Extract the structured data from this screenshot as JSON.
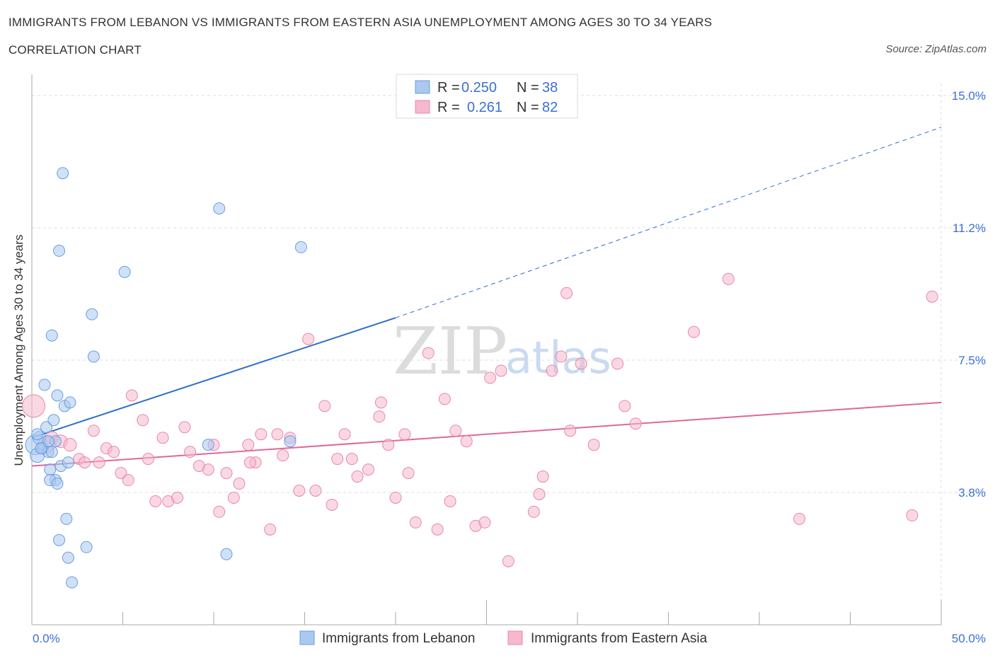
{
  "title": "IMMIGRANTS FROM LEBANON VS IMMIGRANTS FROM EASTERN ASIA UNEMPLOYMENT AMONG AGES 30 TO 34 YEARS",
  "subtitle": "CORRELATION CHART",
  "source": "Source: ZipAtlas.com",
  "watermark": {
    "zip": "ZIP",
    "atlas": "atlas"
  },
  "colors": {
    "blue_fill": "#aac8f0",
    "blue_stroke": "#6a9de0",
    "blue_line": "#2d6fcc",
    "pink_fill": "#f5b8cc",
    "pink_stroke": "#e888a8",
    "pink_line": "#e0679a",
    "grid": "#dddddd",
    "axis_label": "#3a6fd8"
  },
  "legend": {
    "rows": [
      {
        "r_label": "R = ",
        "r_value": "0.250",
        "n_label": "N = ",
        "n_value": "38"
      },
      {
        "r_label": "R = ",
        "r_value": "0.261",
        "n_label": "N = ",
        "n_value": "82"
      }
    ]
  },
  "bottom_legend": [
    "Immigrants from Lebanon",
    "Immigrants from Eastern Asia"
  ],
  "chart_data": {
    "type": "scatter",
    "xlabel": "",
    "ylabel": "Unemployment Among Ages 30 to 34 years",
    "xlim": [
      0,
      50
    ],
    "ylim": [
      0,
      15
    ],
    "x_tick_labels": [
      {
        "value": 0,
        "label": "0.0%"
      },
      {
        "value": 50,
        "label": "50.0%"
      }
    ],
    "y_tick_labels": [
      {
        "value": 3.75,
        "label": "3.8%"
      },
      {
        "value": 7.5,
        "label": "7.5%"
      },
      {
        "value": 11.25,
        "label": "11.2%"
      },
      {
        "value": 15.0,
        "label": "15.0%"
      }
    ],
    "series": [
      {
        "name": "Immigrants from Lebanon",
        "color": "blue",
        "trend": {
          "x0": 0,
          "y0": 5.3,
          "x_solid_end": 20,
          "y_solid_end": 8.7,
          "x_end": 50,
          "y_end": 14.1
        },
        "points": [
          {
            "x": 0.2,
            "y": 5.1,
            "s": 14
          },
          {
            "x": 0.3,
            "y": 4.8,
            "s": 10
          },
          {
            "x": 0.4,
            "y": 5.3,
            "s": 9
          },
          {
            "x": 0.6,
            "y": 5.0,
            "s": 8
          },
          {
            "x": 0.8,
            "y": 5.6,
            "s": 8
          },
          {
            "x": 0.9,
            "y": 4.9,
            "s": 8
          },
          {
            "x": 0.7,
            "y": 6.8,
            "s": 8
          },
          {
            "x": 1.1,
            "y": 8.2,
            "s": 8
          },
          {
            "x": 1.2,
            "y": 5.8,
            "s": 8
          },
          {
            "x": 1.3,
            "y": 5.2,
            "s": 8
          },
          {
            "x": 1.3,
            "y": 4.1,
            "s": 8
          },
          {
            "x": 1.4,
            "y": 6.5,
            "s": 8
          },
          {
            "x": 1.5,
            "y": 10.6,
            "s": 8
          },
          {
            "x": 1.6,
            "y": 4.5,
            "s": 8
          },
          {
            "x": 1.7,
            "y": 12.8,
            "s": 8
          },
          {
            "x": 1.8,
            "y": 6.2,
            "s": 8
          },
          {
            "x": 1.9,
            "y": 3.0,
            "s": 8
          },
          {
            "x": 2.0,
            "y": 1.9,
            "s": 8
          },
          {
            "x": 2.1,
            "y": 6.3,
            "s": 8
          },
          {
            "x": 2.2,
            "y": 1.2,
            "s": 8
          },
          {
            "x": 1.5,
            "y": 2.4,
            "s": 8
          },
          {
            "x": 1.0,
            "y": 4.4,
            "s": 8
          },
          {
            "x": 1.0,
            "y": 4.1,
            "s": 8
          },
          {
            "x": 2.0,
            "y": 4.6,
            "s": 8
          },
          {
            "x": 3.0,
            "y": 2.2,
            "s": 8
          },
          {
            "x": 3.3,
            "y": 8.8,
            "s": 8
          },
          {
            "x": 3.4,
            "y": 7.6,
            "s": 8
          },
          {
            "x": 5.1,
            "y": 10.0,
            "s": 8
          },
          {
            "x": 10.3,
            "y": 11.8,
            "s": 8
          },
          {
            "x": 9.7,
            "y": 5.1,
            "s": 8
          },
          {
            "x": 10.7,
            "y": 2.0,
            "s": 8
          },
          {
            "x": 14.8,
            "y": 10.7,
            "s": 8
          },
          {
            "x": 14.2,
            "y": 5.2,
            "s": 8
          },
          {
            "x": 0.5,
            "y": 5.0,
            "s": 8
          },
          {
            "x": 0.9,
            "y": 5.2,
            "s": 8
          },
          {
            "x": 0.3,
            "y": 5.4,
            "s": 8
          },
          {
            "x": 1.1,
            "y": 4.9,
            "s": 8
          },
          {
            "x": 1.4,
            "y": 4.0,
            "s": 8
          }
        ]
      },
      {
        "name": "Immigrants from Eastern Asia",
        "color": "pink",
        "trend": {
          "x0": 0,
          "y0": 4.5,
          "x_end": 50,
          "y_end": 6.3
        },
        "points": [
          {
            "x": 0.1,
            "y": 6.2,
            "s": 16
          },
          {
            "x": 0.8,
            "y": 5.1,
            "s": 12
          },
          {
            "x": 1.1,
            "y": 5.3,
            "s": 9
          },
          {
            "x": 1.6,
            "y": 5.2,
            "s": 9
          },
          {
            "x": 2.1,
            "y": 5.1,
            "s": 9
          },
          {
            "x": 2.6,
            "y": 4.7,
            "s": 8
          },
          {
            "x": 2.9,
            "y": 4.6,
            "s": 8
          },
          {
            "x": 3.4,
            "y": 5.5,
            "s": 8
          },
          {
            "x": 3.7,
            "y": 4.6,
            "s": 8
          },
          {
            "x": 4.1,
            "y": 5.0,
            "s": 8
          },
          {
            "x": 4.5,
            "y": 4.9,
            "s": 8
          },
          {
            "x": 4.9,
            "y": 4.3,
            "s": 8
          },
          {
            "x": 5.3,
            "y": 4.1,
            "s": 8
          },
          {
            "x": 5.5,
            "y": 6.5,
            "s": 8
          },
          {
            "x": 6.1,
            "y": 5.8,
            "s": 8
          },
          {
            "x": 6.4,
            "y": 4.7,
            "s": 8
          },
          {
            "x": 6.8,
            "y": 3.5,
            "s": 8
          },
          {
            "x": 7.2,
            "y": 5.3,
            "s": 8
          },
          {
            "x": 7.5,
            "y": 3.5,
            "s": 8
          },
          {
            "x": 8.0,
            "y": 3.6,
            "s": 8
          },
          {
            "x": 8.4,
            "y": 5.6,
            "s": 8
          },
          {
            "x": 8.7,
            "y": 4.9,
            "s": 8
          },
          {
            "x": 9.2,
            "y": 4.5,
            "s": 8
          },
          {
            "x": 9.7,
            "y": 4.4,
            "s": 8
          },
          {
            "x": 10.0,
            "y": 5.1,
            "s": 8
          },
          {
            "x": 10.3,
            "y": 3.2,
            "s": 8
          },
          {
            "x": 10.7,
            "y": 4.3,
            "s": 8
          },
          {
            "x": 11.1,
            "y": 3.6,
            "s": 8
          },
          {
            "x": 11.4,
            "y": 4.0,
            "s": 8
          },
          {
            "x": 11.9,
            "y": 5.1,
            "s": 8
          },
          {
            "x": 12.3,
            "y": 4.6,
            "s": 8
          },
          {
            "x": 12.6,
            "y": 5.4,
            "s": 8
          },
          {
            "x": 13.1,
            "y": 2.7,
            "s": 8
          },
          {
            "x": 13.5,
            "y": 5.4,
            "s": 8
          },
          {
            "x": 13.8,
            "y": 4.8,
            "s": 8
          },
          {
            "x": 14.2,
            "y": 5.3,
            "s": 8
          },
          {
            "x": 14.7,
            "y": 3.8,
            "s": 8
          },
          {
            "x": 15.2,
            "y": 8.1,
            "s": 8
          },
          {
            "x": 15.6,
            "y": 3.8,
            "s": 8
          },
          {
            "x": 16.1,
            "y": 6.2,
            "s": 8
          },
          {
            "x": 16.5,
            "y": 3.4,
            "s": 8
          },
          {
            "x": 16.8,
            "y": 4.7,
            "s": 8
          },
          {
            "x": 17.2,
            "y": 5.4,
            "s": 8
          },
          {
            "x": 17.6,
            "y": 4.7,
            "s": 8
          },
          {
            "x": 17.9,
            "y": 4.2,
            "s": 8
          },
          {
            "x": 18.5,
            "y": 4.4,
            "s": 8
          },
          {
            "x": 19.1,
            "y": 5.9,
            "s": 8
          },
          {
            "x": 19.2,
            "y": 6.3,
            "s": 8
          },
          {
            "x": 19.6,
            "y": 5.1,
            "s": 8
          },
          {
            "x": 20.0,
            "y": 3.6,
            "s": 8
          },
          {
            "x": 20.5,
            "y": 5.4,
            "s": 8
          },
          {
            "x": 20.7,
            "y": 4.3,
            "s": 8
          },
          {
            "x": 21.1,
            "y": 2.9,
            "s": 8
          },
          {
            "x": 21.8,
            "y": 7.7,
            "s": 8
          },
          {
            "x": 22.3,
            "y": 2.7,
            "s": 8
          },
          {
            "x": 22.7,
            "y": 6.4,
            "s": 8
          },
          {
            "x": 23.0,
            "y": 3.5,
            "s": 8
          },
          {
            "x": 23.3,
            "y": 5.5,
            "s": 8
          },
          {
            "x": 23.9,
            "y": 5.2,
            "s": 8
          },
          {
            "x": 24.4,
            "y": 2.8,
            "s": 8
          },
          {
            "x": 24.9,
            "y": 2.9,
            "s": 8
          },
          {
            "x": 25.2,
            "y": 7.0,
            "s": 8
          },
          {
            "x": 25.8,
            "y": 7.2,
            "s": 8
          },
          {
            "x": 26.2,
            "y": 1.8,
            "s": 8
          },
          {
            "x": 27.6,
            "y": 3.2,
            "s": 8
          },
          {
            "x": 27.9,
            "y": 3.7,
            "s": 8
          },
          {
            "x": 28.1,
            "y": 4.2,
            "s": 8
          },
          {
            "x": 28.6,
            "y": 7.2,
            "s": 8
          },
          {
            "x": 29.1,
            "y": 7.6,
            "s": 8
          },
          {
            "x": 29.4,
            "y": 9.4,
            "s": 8
          },
          {
            "x": 29.6,
            "y": 5.5,
            "s": 8
          },
          {
            "x": 30.2,
            "y": 7.4,
            "s": 8
          },
          {
            "x": 30.9,
            "y": 5.1,
            "s": 8
          },
          {
            "x": 32.2,
            "y": 7.4,
            "s": 8
          },
          {
            "x": 32.6,
            "y": 6.2,
            "s": 8
          },
          {
            "x": 33.2,
            "y": 5.7,
            "s": 8
          },
          {
            "x": 36.4,
            "y": 8.3,
            "s": 8
          },
          {
            "x": 38.3,
            "y": 9.8,
            "s": 8
          },
          {
            "x": 42.2,
            "y": 3.0,
            "s": 8
          },
          {
            "x": 48.4,
            "y": 3.1,
            "s": 8
          },
          {
            "x": 49.5,
            "y": 9.3,
            "s": 8
          },
          {
            "x": 12.0,
            "y": 4.6,
            "s": 8
          }
        ]
      }
    ]
  }
}
